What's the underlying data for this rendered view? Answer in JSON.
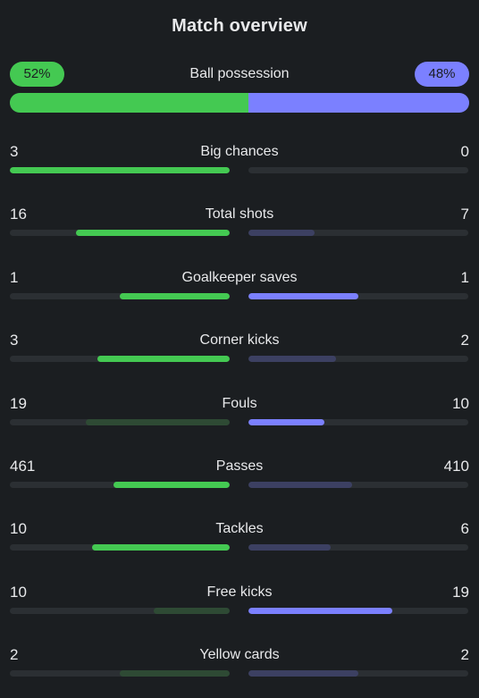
{
  "title": "Match overview",
  "possession": {
    "label": "Ball possession",
    "home": "52%",
    "away": "48%",
    "home_fraction": 0.52
  },
  "colors": {
    "home_strong": "#44c952",
    "home_weak": "#2e4a34",
    "away_strong": "#7b80ff",
    "away_weak": "#3c4062",
    "track": "#2b2f33"
  },
  "stats": [
    {
      "label": "Big chances",
      "home": "3",
      "away": "0",
      "home_fill": 1.0,
      "away_fill": 0.0,
      "home_lead": true,
      "away_lead": false
    },
    {
      "label": "Total shots",
      "home": "16",
      "away": "7",
      "home_fill": 0.7,
      "away_fill": 0.3,
      "home_lead": true,
      "away_lead": false
    },
    {
      "label": "Goalkeeper saves",
      "home": "1",
      "away": "1",
      "home_fill": 0.5,
      "away_fill": 0.5,
      "home_lead": true,
      "away_lead": true
    },
    {
      "label": "Corner kicks",
      "home": "3",
      "away": "2",
      "home_fill": 0.6,
      "away_fill": 0.4,
      "home_lead": true,
      "away_lead": false
    },
    {
      "label": "Fouls",
      "home": "19",
      "away": "10",
      "home_fill": 0.655,
      "away_fill": 0.345,
      "home_lead": false,
      "away_lead": true
    },
    {
      "label": "Passes",
      "home": "461",
      "away": "410",
      "home_fill": 0.53,
      "away_fill": 0.47,
      "home_lead": true,
      "away_lead": false
    },
    {
      "label": "Tackles",
      "home": "10",
      "away": "6",
      "home_fill": 0.625,
      "away_fill": 0.375,
      "home_lead": true,
      "away_lead": false
    },
    {
      "label": "Free kicks",
      "home": "10",
      "away": "19",
      "home_fill": 0.345,
      "away_fill": 0.655,
      "home_lead": false,
      "away_lead": true
    },
    {
      "label": "Yellow cards",
      "home": "2",
      "away": "2",
      "home_fill": 0.5,
      "away_fill": 0.5,
      "home_lead": false,
      "away_lead": false
    }
  ]
}
